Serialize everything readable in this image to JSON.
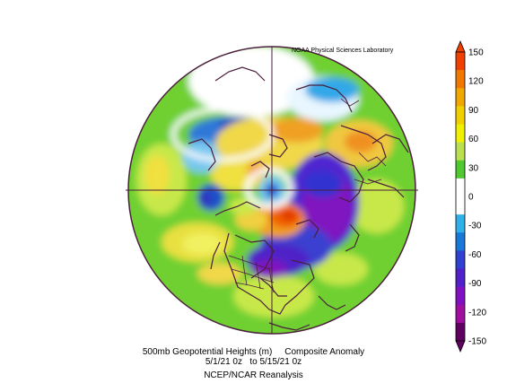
{
  "map": {
    "credit": "NOAA Physical Sciences Laboratory",
    "caption_line1": "500mb Geopotential Heights (m)     Composite Anomaly",
    "caption_line2": "5/1/21 0z   to 5/15/21 0z",
    "caption_line3": "NCEP/NCAR Reanalysis",
    "projection": "north-polar-stereographic",
    "background": "#ffffff",
    "outline_color": "#4a1f3c"
  },
  "colorbar": {
    "ticks": [
      "150",
      "120",
      "90",
      "60",
      "30",
      "0",
      "-30",
      "-60",
      "-90",
      "-120",
      "-150"
    ],
    "colors": [
      "#f04000",
      "#f07800",
      "#f0a800",
      "#f0d000",
      "#f0f000",
      "#b8e050",
      "#50c830",
      "#ffffff",
      "#ffffff",
      "#30b0e8",
      "#1878d8",
      "#3040d0",
      "#5020c8",
      "#8010c0",
      "#a010a0",
      "#600060"
    ]
  }
}
